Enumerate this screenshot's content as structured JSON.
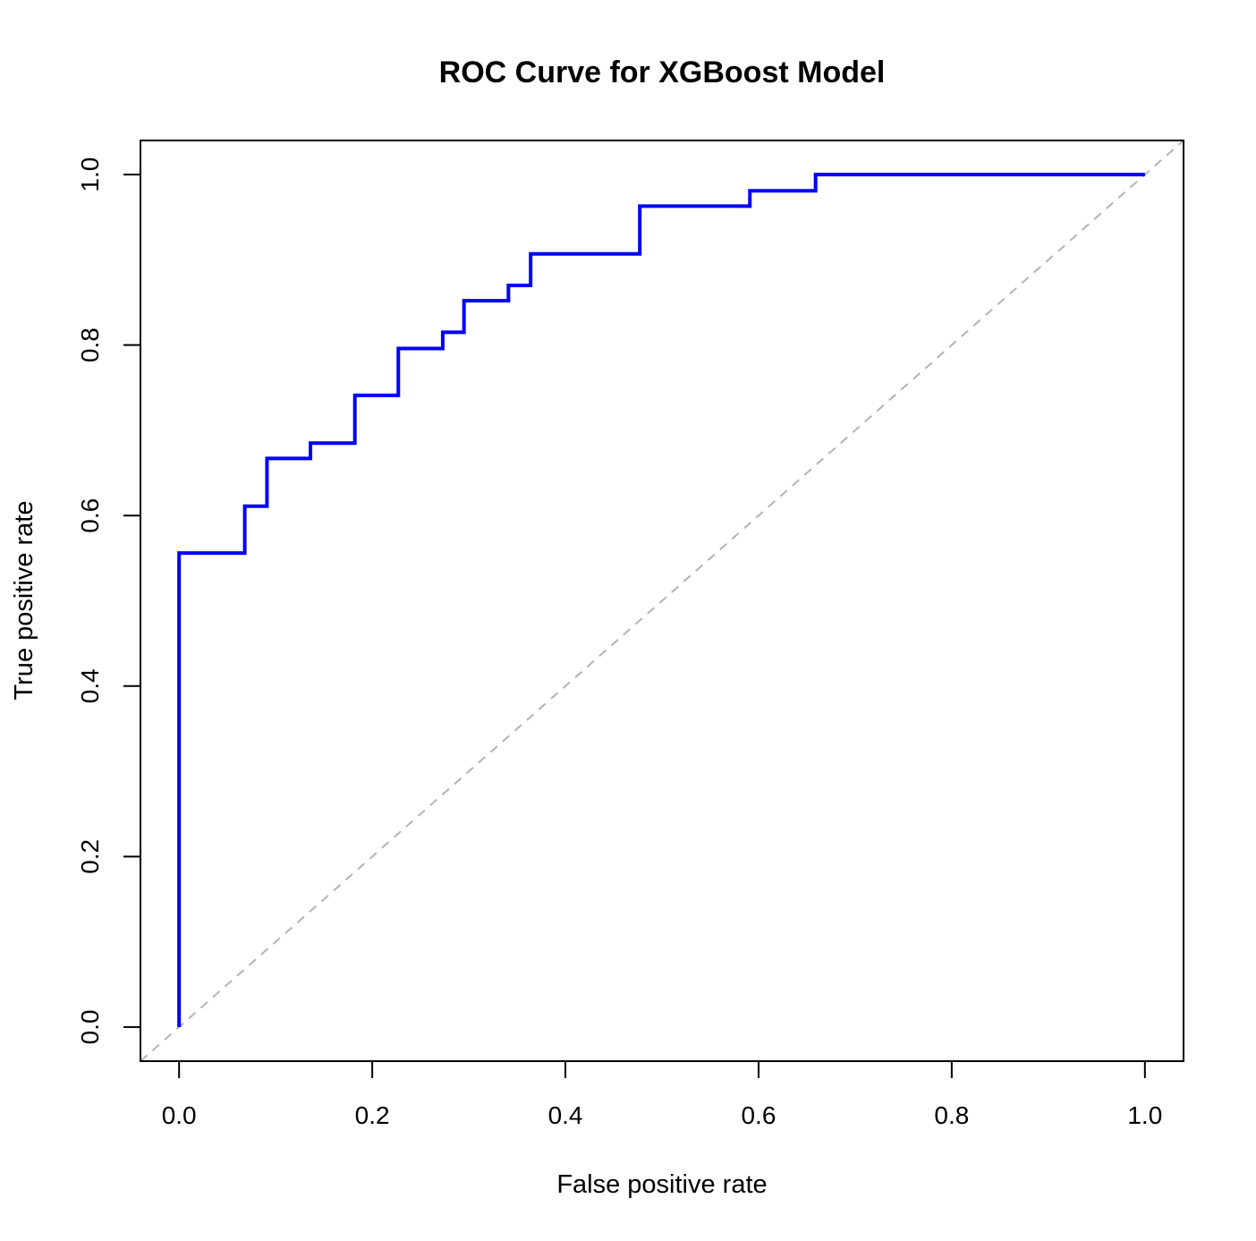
{
  "chart_data": {
    "type": "line",
    "title": "ROC Curve for XGBoost Model",
    "xlabel": "False positive rate",
    "ylabel": "True positive rate",
    "xlim": [
      -0.04,
      1.04
    ],
    "ylim": [
      -0.04,
      1.04
    ],
    "x_ticks": [
      0.0,
      0.2,
      0.4,
      0.6,
      0.8,
      1.0
    ],
    "y_ticks": [
      0.0,
      0.2,
      0.4,
      0.6,
      0.8,
      1.0
    ],
    "x_tick_labels": [
      "0.0",
      "0.2",
      "0.4",
      "0.6",
      "0.8",
      "1.0"
    ],
    "y_tick_labels": [
      "0.0",
      "0.2",
      "0.4",
      "0.6",
      "0.8",
      "1.0"
    ],
    "grid": false,
    "legend": "none",
    "series": [
      {
        "style": "step",
        "color": "#0000ff",
        "x": [
          0.0,
          0.0,
          0.068,
          0.068,
          0.091,
          0.091,
          0.136,
          0.136,
          0.182,
          0.182,
          0.227,
          0.227,
          0.273,
          0.273,
          0.295,
          0.295,
          0.341,
          0.341,
          0.364,
          0.364,
          0.477,
          0.477,
          0.591,
          0.591,
          0.659,
          0.659,
          1.0
        ],
        "y": [
          0.0,
          0.556,
          0.556,
          0.611,
          0.611,
          0.667,
          0.667,
          0.685,
          0.685,
          0.741,
          0.741,
          0.796,
          0.796,
          0.815,
          0.815,
          0.852,
          0.852,
          0.87,
          0.87,
          0.907,
          0.907,
          0.963,
          0.963,
          0.981,
          0.981,
          1.0,
          1.0
        ]
      }
    ],
    "reference_line": {
      "style": "dashed",
      "color": "#b3b3b3",
      "x": [
        -0.04,
        1.04
      ],
      "y": [
        -0.04,
        1.04
      ]
    }
  }
}
